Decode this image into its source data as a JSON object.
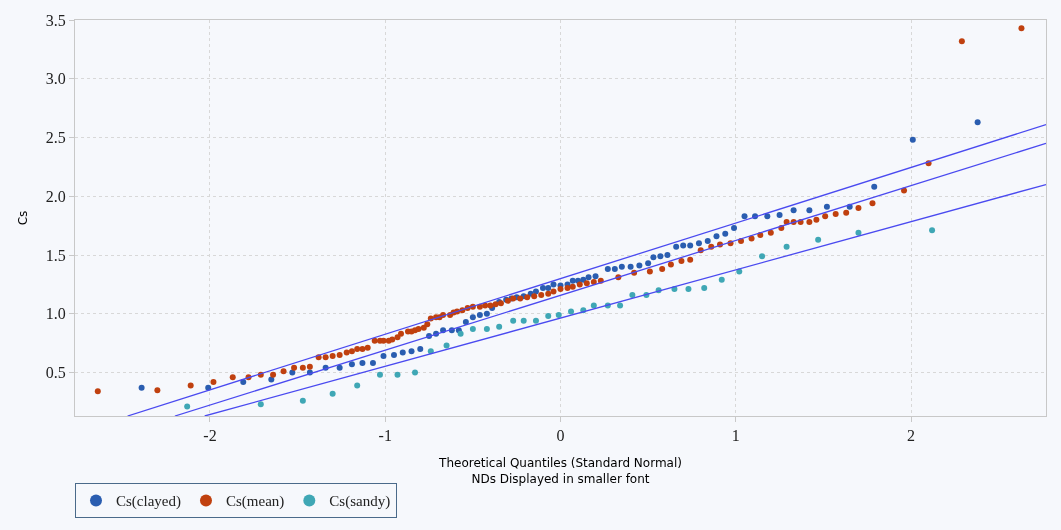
{
  "chart_data": {
    "type": "scatter",
    "xlabel": "Theoretical Quantiles (Standard Normal)\nNDs Displayed in smaller font",
    "ylabel": "Cs",
    "xlim": [
      -2.77,
      2.77
    ],
    "ylim": [
      0.13,
      3.5
    ],
    "xticks": [
      -2,
      -1,
      0,
      1,
      2
    ],
    "yticks": [
      {
        "value": 0.5,
        "label": "0.5"
      },
      {
        "value": 1.0,
        "label": "1.0"
      },
      {
        "value": 1.5,
        "label": "1.5"
      },
      {
        "value": 2.0,
        "label": "2.0"
      },
      {
        "value": 2.5,
        "label": "2.5"
      },
      {
        "value": 3.0,
        "label": "3.0"
      },
      {
        "value": 3.5,
        "label": "3.5"
      }
    ],
    "grid": true,
    "legend": "bottom left",
    "marker": "circle",
    "series": [
      {
        "name": "Cs(clayed)",
        "color": "#2a5db0",
        "x": [
          -2.39,
          -2.01,
          -1.81,
          -1.65,
          -1.53,
          -1.43,
          -1.34,
          -1.26,
          -1.19,
          -1.13,
          -1.07,
          -1.01,
          -0.95,
          -0.9,
          -0.85,
          -0.8,
          -0.75,
          -0.71,
          -0.67,
          -0.62,
          -0.58,
          -0.54,
          -0.5,
          -0.46,
          -0.42,
          -0.39,
          -0.35,
          -0.31,
          -0.28,
          -0.25,
          -0.21,
          -0.17,
          -0.14,
          -0.1,
          -0.07,
          -0.04,
          0.0,
          0.04,
          0.07,
          0.1,
          0.13,
          0.16,
          0.2,
          0.27,
          0.31,
          0.35,
          0.4,
          0.45,
          0.5,
          0.53,
          0.57,
          0.61,
          0.66,
          0.7,
          0.74,
          0.79,
          0.84,
          0.89,
          0.94,
          0.99,
          1.05,
          1.11,
          1.18,
          1.25,
          1.33,
          1.42,
          1.52,
          1.65,
          1.79,
          2.01,
          2.38
        ],
        "values": [
          0.37,
          0.37,
          0.42,
          0.44,
          0.5,
          0.5,
          0.54,
          0.54,
          0.57,
          0.58,
          0.58,
          0.64,
          0.65,
          0.67,
          0.68,
          0.7,
          0.81,
          0.83,
          0.86,
          0.86,
          0.86,
          0.93,
          0.97,
          0.99,
          1.0,
          1.05,
          1.1,
          1.12,
          1.13,
          1.14,
          1.15,
          1.17,
          1.19,
          1.22,
          1.22,
          1.25,
          1.24,
          1.25,
          1.28,
          1.28,
          1.29,
          1.31,
          1.32,
          1.38,
          1.38,
          1.4,
          1.4,
          1.41,
          1.43,
          1.48,
          1.49,
          1.5,
          1.57,
          1.58,
          1.58,
          1.6,
          1.62,
          1.66,
          1.68,
          1.73,
          1.83,
          1.83,
          1.83,
          1.84,
          1.88,
          1.88,
          1.91,
          1.91,
          2.08,
          2.48,
          2.63
        ]
      },
      {
        "name": "Cs(mean)",
        "color": "#c0400f",
        "x": [
          -2.64,
          -2.3,
          -2.11,
          -1.98,
          -1.87,
          -1.78,
          -1.71,
          -1.64,
          -1.58,
          -1.52,
          -1.47,
          -1.43,
          -1.38,
          -1.34,
          -1.3,
          -1.26,
          -1.22,
          -1.19,
          -1.16,
          -1.13,
          -1.1,
          -1.06,
          -1.03,
          -1.01,
          -0.98,
          -0.96,
          -0.93,
          -0.91,
          -0.87,
          -0.85,
          -0.83,
          -0.81,
          -0.78,
          -0.76,
          -0.74,
          -0.71,
          -0.69,
          -0.67,
          -0.63,
          -0.61,
          -0.59,
          -0.56,
          -0.53,
          -0.5,
          -0.46,
          -0.43,
          -0.4,
          -0.37,
          -0.34,
          -0.3,
          -0.27,
          -0.23,
          -0.19,
          -0.15,
          -0.11,
          -0.07,
          -0.04,
          0.0,
          0.04,
          0.07,
          0.11,
          0.15,
          0.19,
          0.23,
          0.33,
          0.42,
          0.51,
          0.58,
          0.63,
          0.69,
          0.74,
          0.8,
          0.86,
          0.91,
          0.97,
          1.03,
          1.09,
          1.14,
          1.2,
          1.26,
          1.29,
          1.33,
          1.37,
          1.42,
          1.46,
          1.51,
          1.57,
          1.63,
          1.7,
          1.78,
          1.96,
          2.1,
          2.29,
          2.63
        ],
        "values": [
          0.34,
          0.35,
          0.39,
          0.42,
          0.46,
          0.46,
          0.48,
          0.48,
          0.51,
          0.54,
          0.54,
          0.55,
          0.63,
          0.63,
          0.64,
          0.65,
          0.67,
          0.68,
          0.7,
          0.7,
          0.71,
          0.77,
          0.77,
          0.77,
          0.77,
          0.78,
          0.8,
          0.83,
          0.85,
          0.85,
          0.86,
          0.87,
          0.88,
          0.91,
          0.96,
          0.97,
          0.97,
          0.99,
          0.99,
          1.01,
          1.02,
          1.03,
          1.05,
          1.06,
          1.06,
          1.07,
          1.07,
          1.08,
          1.09,
          1.11,
          1.13,
          1.13,
          1.14,
          1.15,
          1.16,
          1.17,
          1.19,
          1.21,
          1.22,
          1.23,
          1.25,
          1.26,
          1.27,
          1.28,
          1.31,
          1.35,
          1.36,
          1.38,
          1.42,
          1.45,
          1.46,
          1.54,
          1.57,
          1.59,
          1.6,
          1.62,
          1.64,
          1.67,
          1.69,
          1.73,
          1.78,
          1.78,
          1.78,
          1.78,
          1.8,
          1.83,
          1.85,
          1.86,
          1.9,
          1.94,
          2.05,
          2.28,
          3.32,
          3.43
        ]
      },
      {
        "name": "Cs(sandy)",
        "color": "#3fa7b5",
        "x": [
          -2.13,
          -1.71,
          -1.47,
          -1.3,
          -1.16,
          -1.03,
          -0.93,
          -0.83,
          -0.74,
          -0.65,
          -0.57,
          -0.5,
          -0.42,
          -0.35,
          -0.27,
          -0.21,
          -0.14,
          -0.07,
          -0.01,
          0.06,
          0.13,
          0.19,
          0.27,
          0.34,
          0.41,
          0.49,
          0.56,
          0.65,
          0.73,
          0.82,
          0.92,
          1.02,
          1.15,
          1.29,
          1.47,
          1.7,
          2.12
        ],
        "values": [
          0.21,
          0.23,
          0.26,
          0.32,
          0.39,
          0.48,
          0.48,
          0.5,
          0.68,
          0.73,
          0.83,
          0.87,
          0.87,
          0.89,
          0.94,
          0.94,
          0.94,
          0.98,
          0.99,
          1.02,
          1.03,
          1.07,
          1.07,
          1.07,
          1.16,
          1.16,
          1.2,
          1.21,
          1.21,
          1.22,
          1.29,
          1.36,
          1.49,
          1.57,
          1.63,
          1.69,
          1.71
        ]
      },
      {
        "type": "line",
        "marker": "none",
        "color": "#4a4af0",
        "x": [
          -2.47,
          2.77
        ],
        "values": [
          0.13,
          2.61
        ]
      },
      {
        "type": "line",
        "marker": "none",
        "color": "#4a4af0",
        "x": [
          -2.2,
          2.77
        ],
        "values": [
          0.13,
          2.45
        ]
      },
      {
        "type": "line",
        "marker": "none",
        "color": "#4a4af0",
        "x": [
          -2.03,
          2.77
        ],
        "values": [
          0.13,
          2.1
        ]
      }
    ]
  }
}
